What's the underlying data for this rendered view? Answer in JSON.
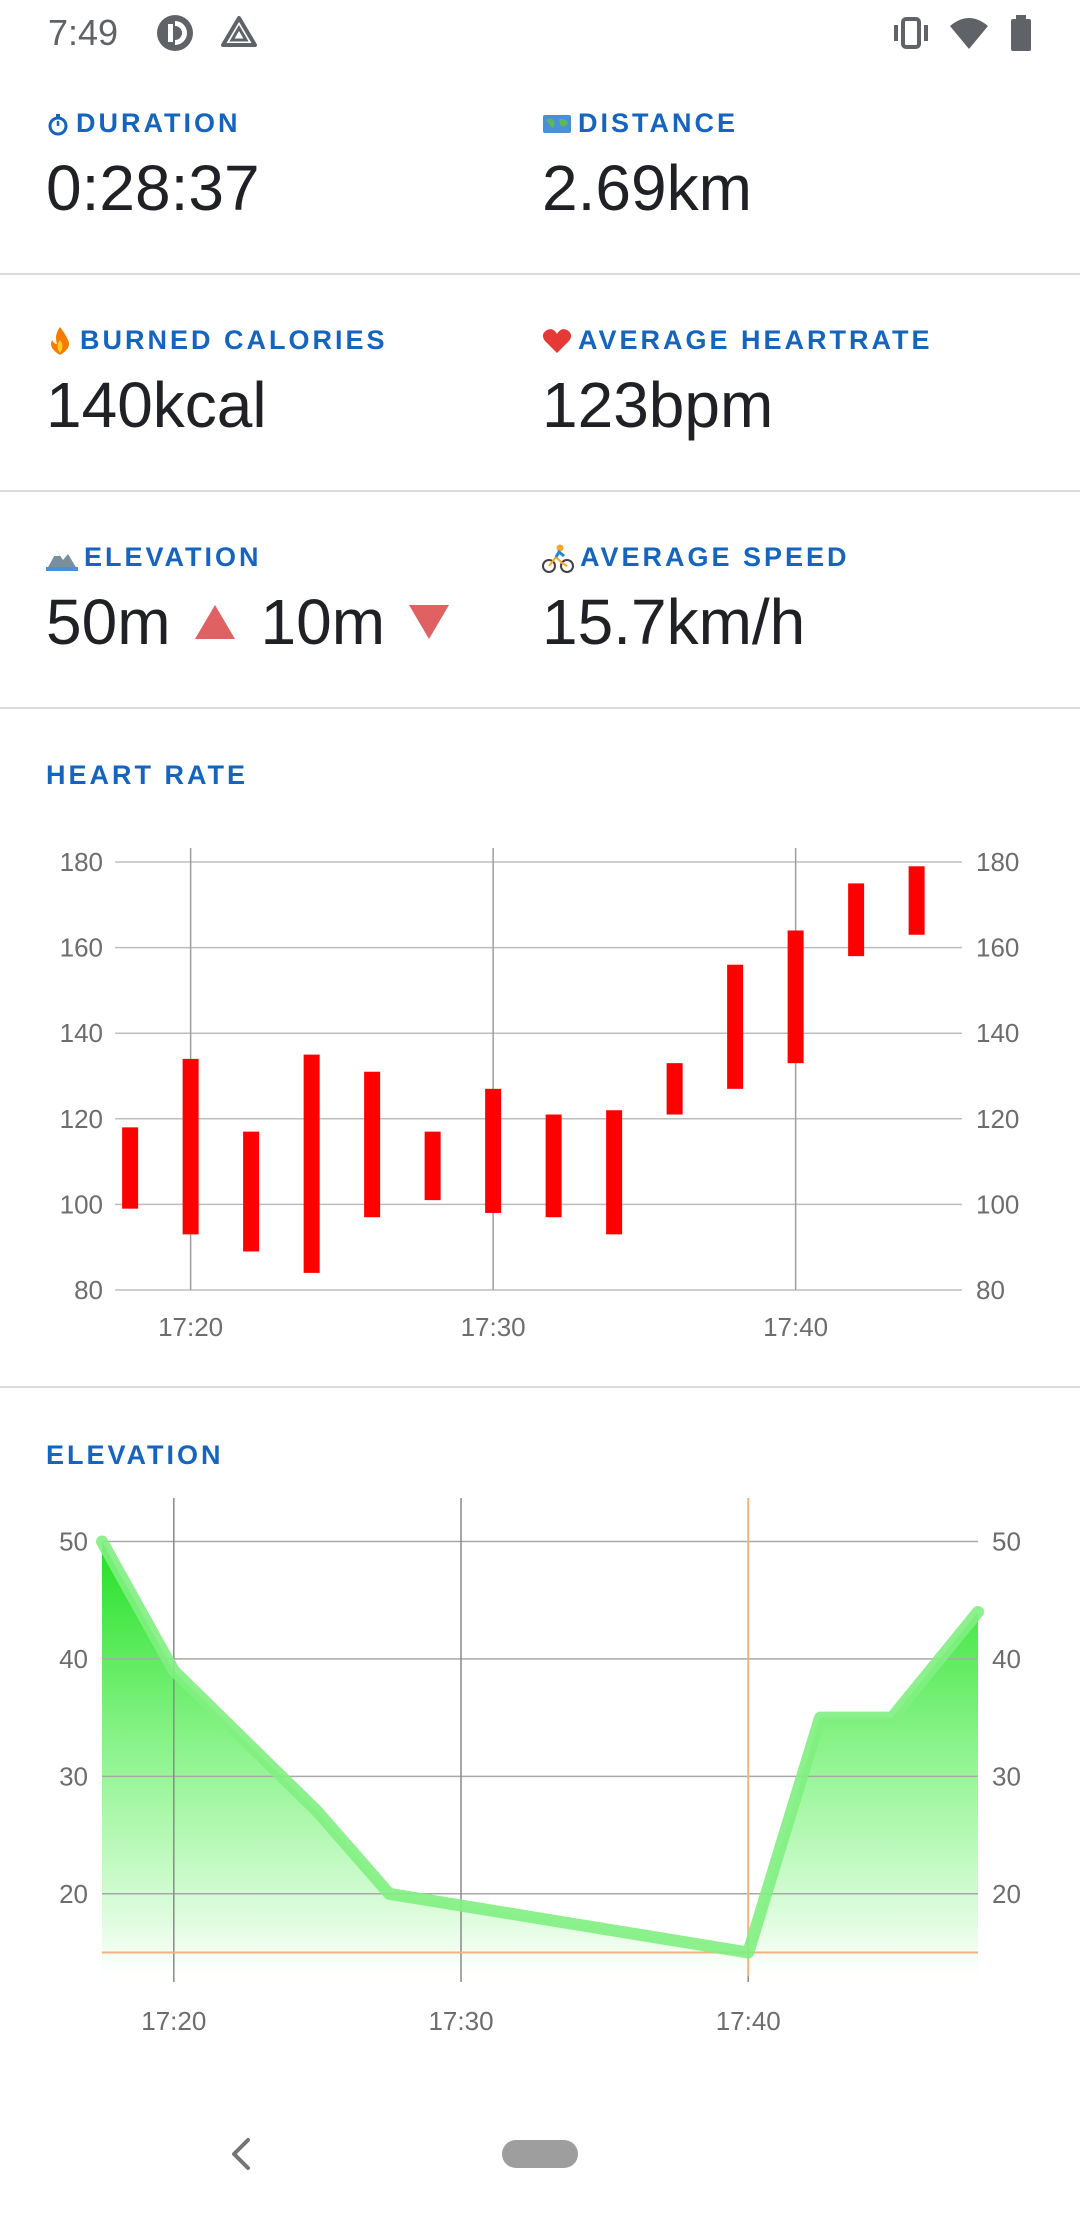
{
  "status_bar": {
    "time": "7:49",
    "left_icons": [
      "pocket-casts-icon",
      "drive-icon"
    ],
    "right_icons": [
      "vibrate-icon",
      "wifi-icon",
      "battery-icon"
    ]
  },
  "stats": {
    "duration": {
      "icon": "stopwatch-icon",
      "label": "DURATION",
      "value": "0:28:37"
    },
    "distance": {
      "icon": "map-icon",
      "label": "DISTANCE",
      "value": "2.69km"
    },
    "calories": {
      "icon": "fire-icon",
      "label": "BURNED CALORIES",
      "value": "140kcal"
    },
    "heartrate": {
      "icon": "heart-icon",
      "label": "AVERAGE HEARTRATE",
      "value": "123bpm"
    },
    "elevation": {
      "icon": "mountain-icon",
      "label": "ELEVATION",
      "up": "50m",
      "down": "10m"
    },
    "speed": {
      "icon": "cyclist-icon",
      "label": "AVERAGE SPEED",
      "value": "15.7km/h"
    }
  },
  "charts": {
    "heart_rate_title": "HEART RATE",
    "elevation_title": "ELEVATION"
  },
  "chart_data": [
    {
      "type": "candlestick-range",
      "title": "HEART RATE",
      "x_tick_labels": [
        "17:20",
        "17:30",
        "17:40"
      ],
      "y_tick_labels": [
        "80",
        "100",
        "120",
        "140",
        "160",
        "180"
      ],
      "ylim": [
        80,
        180
      ],
      "grid": true,
      "color": "#ff0000",
      "ranges": [
        {
          "time": "17:18",
          "low": 99,
          "high": 118
        },
        {
          "time": "17:20",
          "low": 93,
          "high": 134
        },
        {
          "time": "17:22",
          "low": 89,
          "high": 117
        },
        {
          "time": "17:24",
          "low": 84,
          "high": 135
        },
        {
          "time": "17:26",
          "low": 97,
          "high": 131
        },
        {
          "time": "17:28",
          "low": 101,
          "high": 117
        },
        {
          "time": "17:30",
          "low": 98,
          "high": 127
        },
        {
          "time": "17:32",
          "low": 97,
          "high": 121
        },
        {
          "time": "17:34",
          "low": 93,
          "high": 122
        },
        {
          "time": "17:36",
          "low": 121,
          "high": 133
        },
        {
          "time": "17:38",
          "low": 127,
          "high": 156
        },
        {
          "time": "17:40",
          "low": 133,
          "high": 164
        },
        {
          "time": "17:42",
          "low": 158,
          "high": 175
        },
        {
          "time": "17:44",
          "low": 163,
          "high": 179
        }
      ]
    },
    {
      "type": "area",
      "title": "ELEVATION",
      "x_tick_labels": [
        "17:20",
        "17:30",
        "17:40"
      ],
      "y_tick_labels": [
        "20",
        "30",
        "40",
        "50"
      ],
      "ylim": [
        13,
        52
      ],
      "grid": true,
      "color": "#3ddc3d",
      "highlight": {
        "time": "17:40",
        "value": 15,
        "color": "#f4b183"
      },
      "points": [
        {
          "time": "17:17:30",
          "value": 50
        },
        {
          "time": "17:20",
          "value": 39
        },
        {
          "time": "17:25",
          "value": 27
        },
        {
          "time": "17:27:30",
          "value": 20
        },
        {
          "time": "17:40",
          "value": 15
        },
        {
          "time": "17:42:30",
          "value": 35
        },
        {
          "time": "17:45",
          "value": 35
        },
        {
          "time": "17:48",
          "value": 44
        }
      ]
    }
  ],
  "nav_bar": {
    "back_icon": "back-chevron-icon",
    "home_icon": "home-pill-icon"
  }
}
